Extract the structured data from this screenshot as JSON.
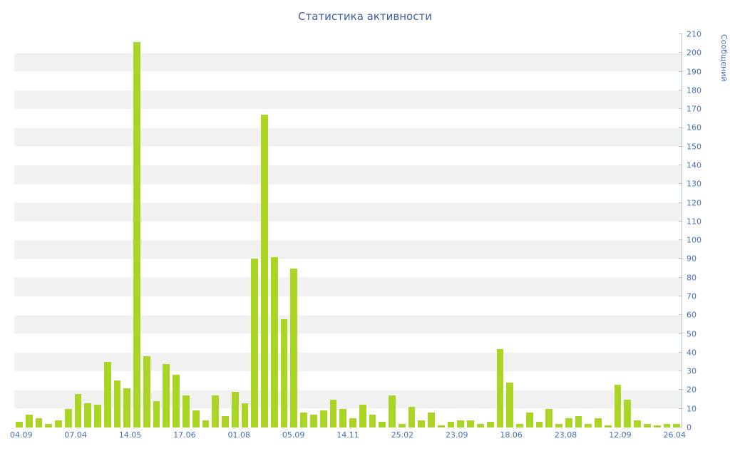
{
  "title": "Статистика активности",
  "chart_data": {
    "type": "bar",
    "title": "Статистика активности",
    "xlabel": "",
    "ylabel": "Сообщений",
    "ylim": [
      0,
      210
    ],
    "y_tick_step": 10,
    "grid": "striped-rows",
    "legend": "none",
    "x_tick_labels": [
      "04.09",
      "07.04",
      "14.05",
      "17.06",
      "01.08",
      "05.09",
      "14.11",
      "25.02",
      "23.09",
      "18.06",
      "23.08",
      "12.09",
      "26.04"
    ],
    "values": [
      3,
      7,
      5,
      2,
      4,
      10,
      18,
      13,
      12,
      35,
      25,
      21,
      206,
      38,
      14,
      34,
      28,
      17,
      9,
      4,
      17,
      6,
      19,
      13,
      90,
      167,
      91,
      58,
      85,
      8,
      7,
      9,
      15,
      10,
      5,
      12,
      7,
      3,
      17,
      2,
      11,
      4,
      8,
      1,
      3,
      4,
      4,
      2,
      3,
      42,
      24,
      2,
      8,
      3,
      10,
      2,
      5,
      6,
      2,
      5,
      1,
      23,
      15,
      4,
      2,
      1,
      2,
      2
    ],
    "bar_color": "#abd524",
    "stripe_color": "#f1f1f1",
    "axis_line_color": "#b3bfd6",
    "axis_text_color": "#4a6fb5",
    "title_color": "#3c5fa6"
  }
}
